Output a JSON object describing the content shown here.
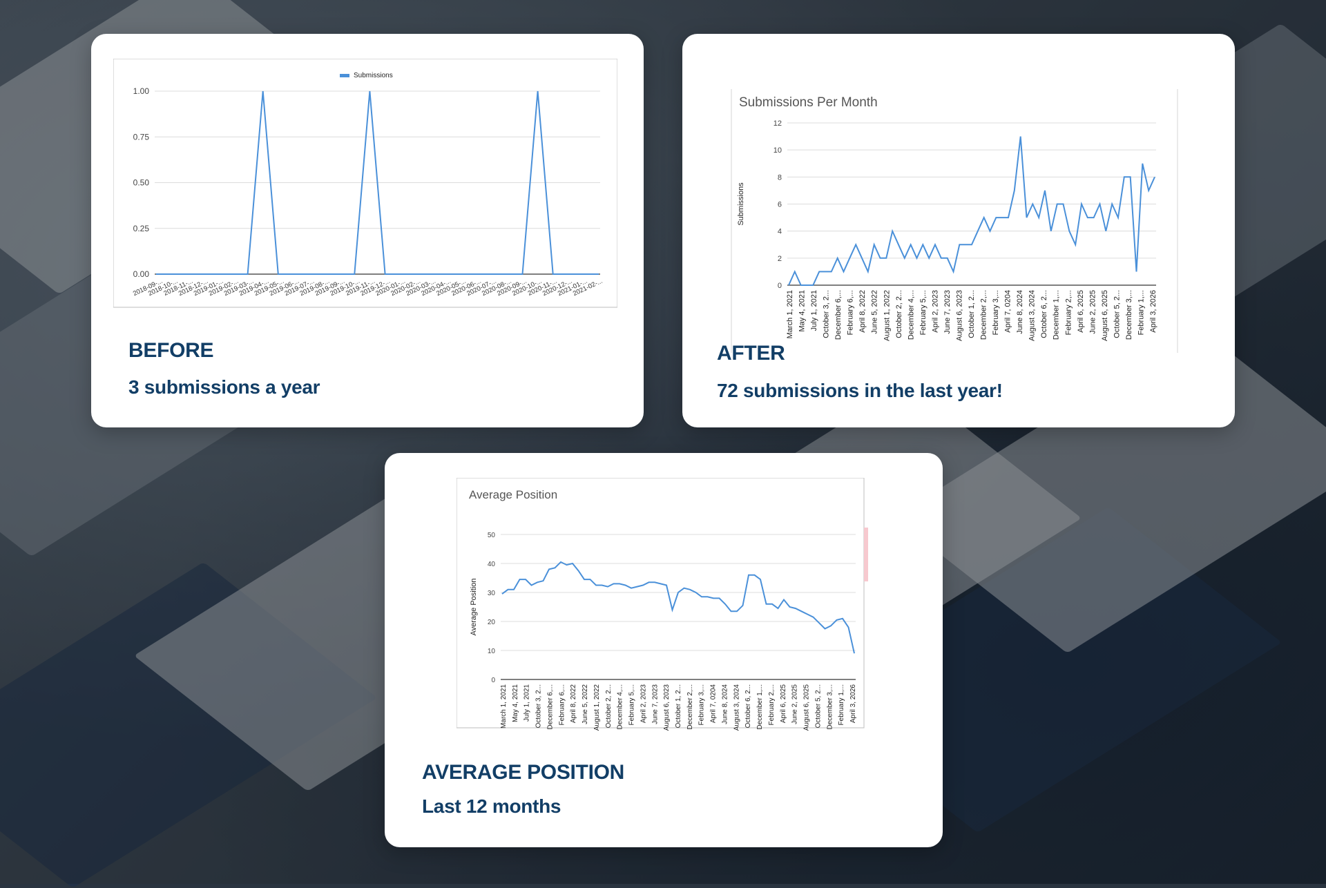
{
  "cards": {
    "before": {
      "title": "BEFORE",
      "subtitle": "3 submissions a year"
    },
    "after": {
      "title": "AFTER",
      "subtitle": "72 submissions in the last year!"
    },
    "position": {
      "title": "AVERAGE POSITION",
      "subtitle": "Last 12 months"
    }
  },
  "colors": {
    "line": "#4a90d9",
    "heading": "#123e66",
    "grid": "#dddddd"
  },
  "chart_data": [
    {
      "type": "line",
      "title": "",
      "legend": {
        "position": "top",
        "entries": [
          "Submissions"
        ]
      },
      "categories": [
        "2018-09-...",
        "2018-10-...",
        "2018-11-...",
        "2018-12-...",
        "2019-01-...",
        "2019-02-...",
        "2019-03-...",
        "2019-04-...",
        "2019-05-...",
        "2019-06-...",
        "2019-07-...",
        "2019-08-...",
        "2019-09-...",
        "2019-10-...",
        "2019-11-...",
        "2019-12-...",
        "2020-01-...",
        "2020-02-...",
        "2020-03-...",
        "2020-04-...",
        "2020-05-...",
        "2020-06-...",
        "2020-07-...",
        "2020-08-...",
        "2020-09-...",
        "2020-10-...",
        "2020-11-...",
        "2020-12-...",
        "2021-01-...",
        "2021-02-..."
      ],
      "series": [
        {
          "name": "Submissions",
          "values": [
            0,
            0,
            0,
            0,
            0,
            0,
            0,
            1,
            0,
            0,
            0,
            0,
            0,
            0,
            1,
            0,
            0,
            0,
            0,
            0,
            0,
            0,
            0,
            0,
            0,
            1,
            0,
            0,
            0,
            0
          ]
        }
      ],
      "yticks": [
        "0.00",
        "0.25",
        "0.50",
        "0.75",
        "1.00"
      ],
      "ylim": [
        0,
        1
      ],
      "grid": true
    },
    {
      "type": "line",
      "title": "Submissions Per Month",
      "ylabel": "Submissions",
      "xticklabels": [
        "March 1, 2021",
        "May 4, 2021",
        "July 1, 2021",
        "October 3, 2...",
        "December 6,...",
        "February 6,...",
        "April 8, 2022",
        "June 5, 2022",
        "August 1, 2022",
        "October 2, 2...",
        "December 4,...",
        "February 5,...",
        "April 2, 2023",
        "June 7, 2023",
        "August 6, 2023",
        "October 1, 2...",
        "December 2,...",
        "February 3,...",
        "April 7, 0204",
        "June 8, 2024",
        "August 3, 2024",
        "October 6, 2...",
        "December 1,...",
        "February 2,...",
        "April 6, 2025",
        "June 2, 2025",
        "August 6, 2025",
        "October 5, 2...",
        "December 3,...",
        "February 1,...",
        "April 3, 2026"
      ],
      "series": [
        {
          "name": "",
          "values": [
            0,
            1,
            0,
            0,
            0,
            1,
            1,
            1,
            2,
            1,
            2,
            3,
            2,
            1,
            3,
            2,
            2,
            4,
            3,
            2,
            3,
            2,
            3,
            2,
            3,
            2,
            2,
            1,
            3,
            3,
            3,
            4,
            5,
            4,
            5,
            5,
            5,
            7,
            11,
            5,
            6,
            5,
            7,
            4,
            6,
            6,
            4,
            3,
            6,
            5,
            5,
            6,
            4,
            6,
            5,
            8,
            8,
            1,
            9,
            7,
            8
          ]
        }
      ],
      "yticks": [
        "0",
        "2",
        "4",
        "6",
        "8",
        "10",
        "12"
      ],
      "ylim": [
        0,
        12
      ],
      "grid": true
    },
    {
      "type": "line",
      "title": "Average Position",
      "ylabel": "Average Position",
      "xticklabels": [
        "March 1, 2021",
        "May 4, 2021",
        "July 1, 2021",
        "October 3, 2...",
        "December 6,...",
        "February 6,...",
        "April 8, 2022",
        "June 5, 2022",
        "August 1, 2022",
        "October 2, 2...",
        "December 4,...",
        "February 5,...",
        "April 2, 2023",
        "June 7, 2023",
        "August 6, 2023",
        "October 1, 2...",
        "December 2,...",
        "February 3,...",
        "April 7, 0204",
        "June 8, 2024",
        "August 3, 2024",
        "October 6, 2...",
        "December 1,...",
        "February 2,...",
        "April 6, 2025",
        "June 2, 2025",
        "August 6, 2025",
        "October 5, 2...",
        "December 3,...",
        "February 1,...",
        "April 3, 2026"
      ],
      "series": [
        {
          "name": "",
          "values": [
            29.5,
            31,
            31,
            34.5,
            34.5,
            32.5,
            33.5,
            34,
            38,
            38.5,
            40.5,
            39.5,
            40,
            37.5,
            34.5,
            34.5,
            32.5,
            32.5,
            32,
            33,
            33,
            32.5,
            31.5,
            32,
            32.5,
            33.5,
            33.5,
            33,
            32.5,
            24,
            30,
            31.5,
            31,
            30,
            28.5,
            28.5,
            28,
            28,
            26,
            23.5,
            23.5,
            25.5,
            36,
            36,
            34.5,
            26,
            26,
            24.5,
            27.5,
            25,
            24.5,
            23.5,
            22.5,
            21.5,
            19.5,
            17.5,
            18.5,
            20.5,
            21,
            18,
            9
          ]
        }
      ],
      "yticks": [
        "0",
        "10",
        "20",
        "30",
        "40",
        "50"
      ],
      "ylim": [
        0,
        50
      ],
      "grid": true
    }
  ]
}
